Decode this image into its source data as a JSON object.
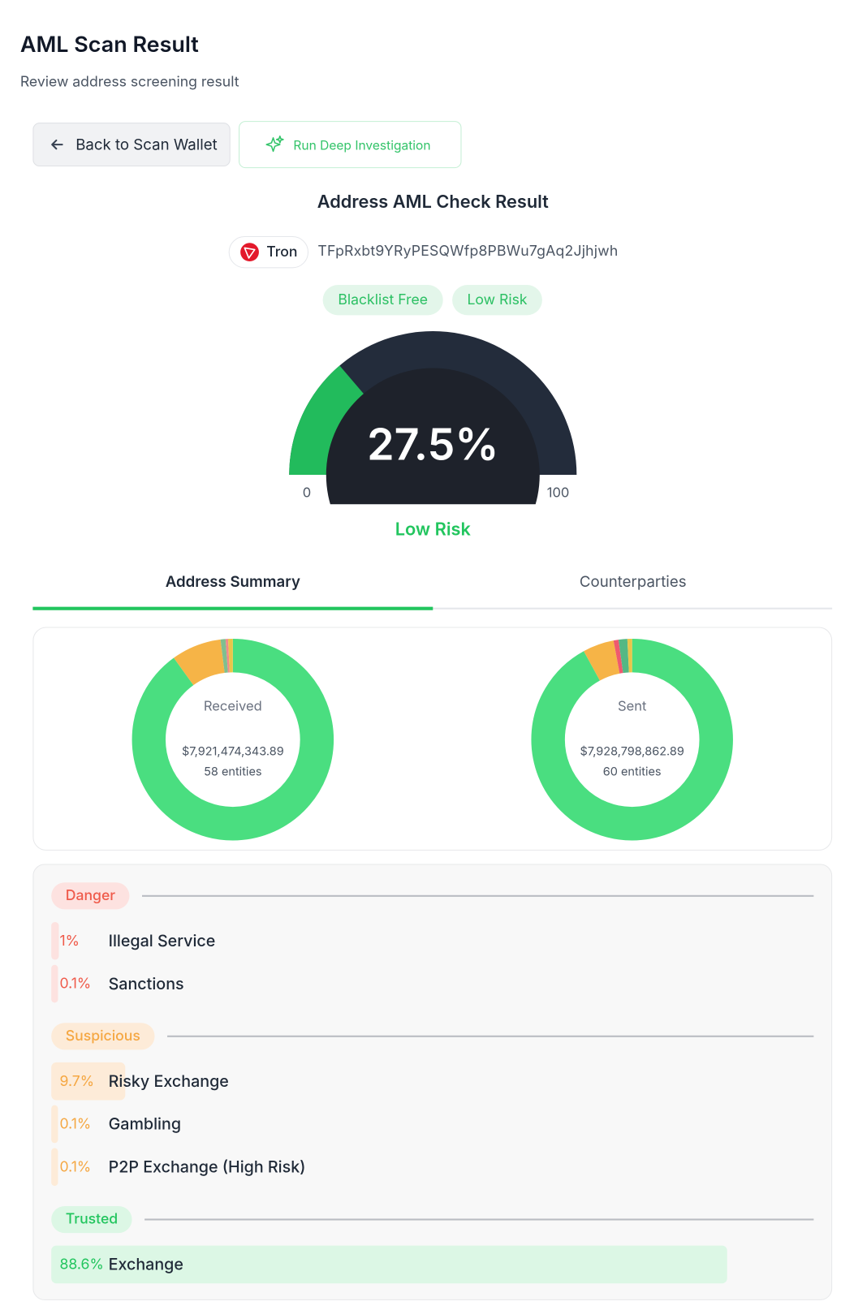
{
  "header": {
    "title": "AML Scan Result",
    "subtitle": "Review address screening result"
  },
  "actions": {
    "back": "Back to Scan Wallet",
    "investigate": "Run Deep Investigation"
  },
  "result": {
    "title": "Address AML Check Result",
    "network": "Tron",
    "address": "TFpRxbt9YRyPESQWfp8PBWu7gAq2Jjhjwh",
    "tags": [
      "Blacklist Free",
      "Low Risk"
    ]
  },
  "gauge": {
    "value": 27.5,
    "label": "27.5%",
    "min": 0,
    "max": 100,
    "risk": "Low Risk",
    "color": "#22bb5c"
  },
  "tabs": [
    "Address Summary",
    "Counterparties"
  ],
  "donuts": [
    {
      "title": "Received",
      "amount": "$7,921,474,343.89",
      "entities": "58 entities",
      "segments": [
        {
          "color": "#4ade80",
          "value": 90
        },
        {
          "color": "#f6b447",
          "value": 8
        },
        {
          "color": "#7fbf8f",
          "value": 0.8
        },
        {
          "color": "#f08a8a",
          "value": 0.4
        },
        {
          "color": "#e9c64a",
          "value": 0.8
        }
      ]
    },
    {
      "title": "Sent",
      "amount": "$7,928,798,862.89",
      "entities": "60 entities",
      "segments": [
        {
          "color": "#4ade80",
          "value": 92
        },
        {
          "color": "#f6b447",
          "value": 5
        },
        {
          "color": "#ef5a6f",
          "value": 0.8
        },
        {
          "color": "#54b884",
          "value": 1.4
        },
        {
          "color": "#e9c64a",
          "value": 0.8
        }
      ]
    }
  ],
  "risk_groups": [
    {
      "name": "Danger",
      "color": "#ef5a4a",
      "bg": "#fde2e0",
      "items": [
        {
          "value": 1,
          "label": "1%",
          "name": "Illegal Service"
        },
        {
          "value": 0.1,
          "label": "0.1%",
          "name": "Sanctions"
        }
      ]
    },
    {
      "name": "Suspicious",
      "color": "#f5a742",
      "bg": "#fdebd8",
      "items": [
        {
          "value": 9.7,
          "label": "9.7%",
          "name": "Risky Exchange"
        },
        {
          "value": 0.1,
          "label": "0.1%",
          "name": "Gambling"
        },
        {
          "value": 0.1,
          "label": "0.1%",
          "name": "P2P Exchange (High Risk)"
        }
      ]
    },
    {
      "name": "Trusted",
      "color": "#22c55e",
      "bg": "#dcf7e5",
      "items": [
        {
          "value": 88.6,
          "label": "88.6%",
          "name": "Exchange"
        }
      ]
    }
  ]
}
